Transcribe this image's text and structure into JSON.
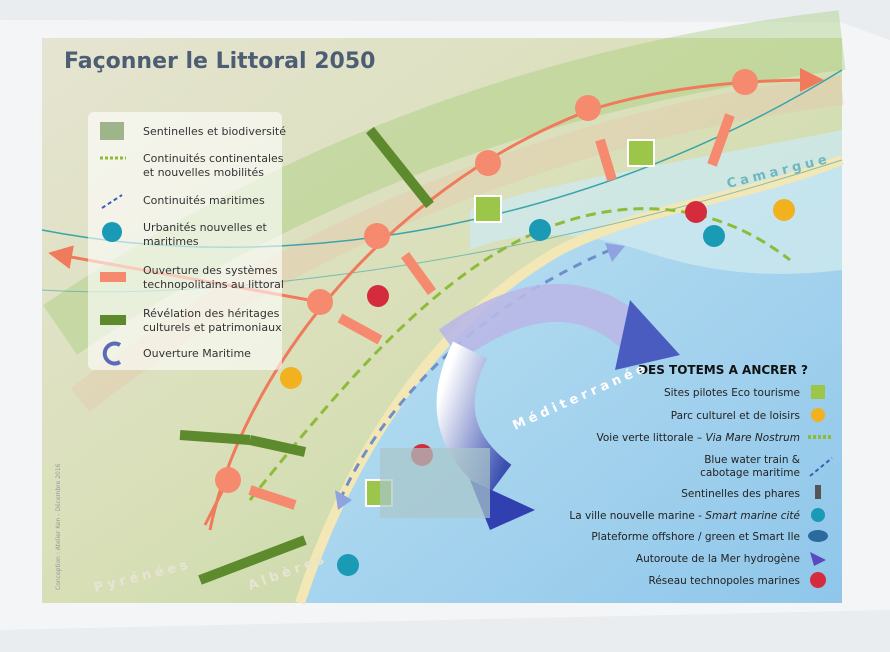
{
  "header": {
    "title": "Façonner le Littoral 2050"
  },
  "legend": {
    "items": [
      {
        "lines": [
          "Sentinelles et biodiversité"
        ]
      },
      {
        "lines": [
          "Continuités continentales",
          "et nouvelles mobilités"
        ]
      },
      {
        "lines": [
          "Continuités maritimes"
        ]
      },
      {
        "lines": [
          "Urbanités nouvelles et",
          "maritimes"
        ]
      },
      {
        "lines": [
          "Ouverture des systèmes",
          "technopolitains au littoral"
        ]
      },
      {
        "lines": [
          "Révélation des héritages",
          "culturels et patrimoniaux"
        ]
      },
      {
        "lines": [
          "Ouverture Maritime"
        ]
      }
    ]
  },
  "totems": {
    "title": "DES TOTEMS A ANCRER ?",
    "items": [
      {
        "lines": [
          "Sites pilotes Eco tourisme"
        ]
      },
      {
        "lines": [
          "Parc culturel et de loisirs"
        ]
      },
      {
        "text": "Voie verte littorale – ",
        "emphasis": "Via Mare Nostrum"
      },
      {
        "lines": [
          "Blue water train &",
          "cabotage maritime"
        ]
      },
      {
        "lines": [
          "Sentinelles des phares"
        ]
      },
      {
        "text": "La ville nouvelle marine - ",
        "emphasis": "Smart marine cité"
      },
      {
        "lines": [
          "Plateforme offshore / green et Smart Ile"
        ]
      },
      {
        "lines": [
          "Autoroute de la Mer hydrogène"
        ]
      },
      {
        "lines": [
          "Réseau technopoles marines"
        ]
      }
    ]
  },
  "places": [
    "Camargue",
    "Méditerranée",
    "Pyrénées",
    "Albères"
  ],
  "credit": "Conception : Atelier Ken - Décembre 2016"
}
